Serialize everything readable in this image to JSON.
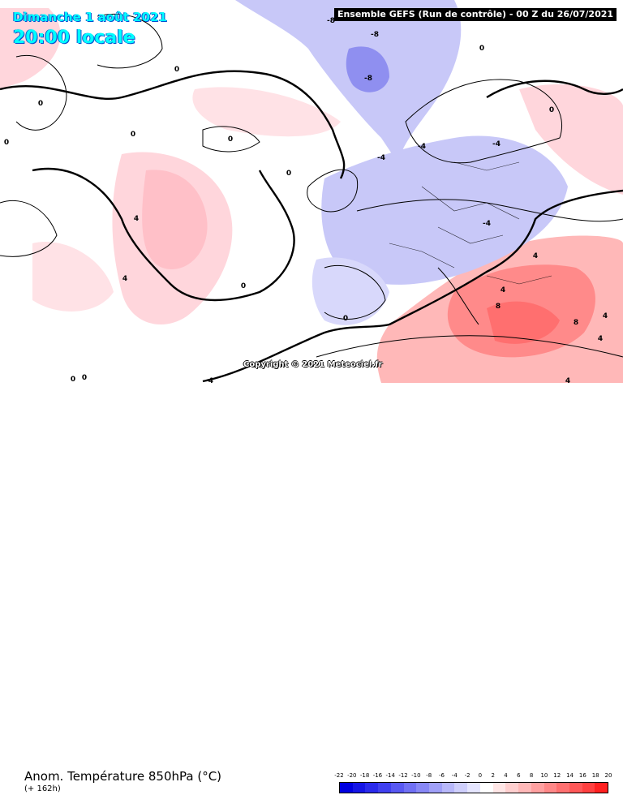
{
  "header": {
    "date": "Dimanche 1 août 2021",
    "time": "20:00 locale",
    "model": "Ensemble GEFS  (Run de contrôle)  -  00 Z du 26/07/2021"
  },
  "copyright": "Copyright © 2021 Meteociel.fr",
  "footer": {
    "parameter": "Anom. Température 850hPa (°C)",
    "lead_time": "(+ 162h)"
  },
  "legend": {
    "labels": [
      "-22",
      "-20",
      "-18",
      "-16",
      "-14",
      "-12",
      "-10",
      "-8",
      "-6",
      "-4",
      "-2",
      "0",
      "2",
      "4",
      "6",
      "8",
      "10",
      "12",
      "14",
      "16",
      "18",
      "20"
    ],
    "colors": [
      "#0000e0",
      "#1515e6",
      "#2a2aec",
      "#4040f0",
      "#5858f2",
      "#7070f4",
      "#8888f6",
      "#a0a0f8",
      "#b8b8fa",
      "#cfcffc",
      "#e6e6ff",
      "#ffffff",
      "#ffe6e6",
      "#ffcfcf",
      "#ffb8b8",
      "#ffa0a0",
      "#ff8888",
      "#ff7070",
      "#ff5858",
      "#ff4040",
      "#ff2020"
    ]
  },
  "contour_labels": [
    "-8",
    "-8",
    "-8",
    "-4",
    "-4",
    "-4",
    "-4",
    "-4",
    "0",
    "0",
    "0",
    "0",
    "0",
    "0",
    "0",
    "0",
    "0",
    "0",
    "0",
    "0",
    "4",
    "4",
    "4",
    "4",
    "4",
    "4",
    "4",
    "8",
    "8"
  ]
}
